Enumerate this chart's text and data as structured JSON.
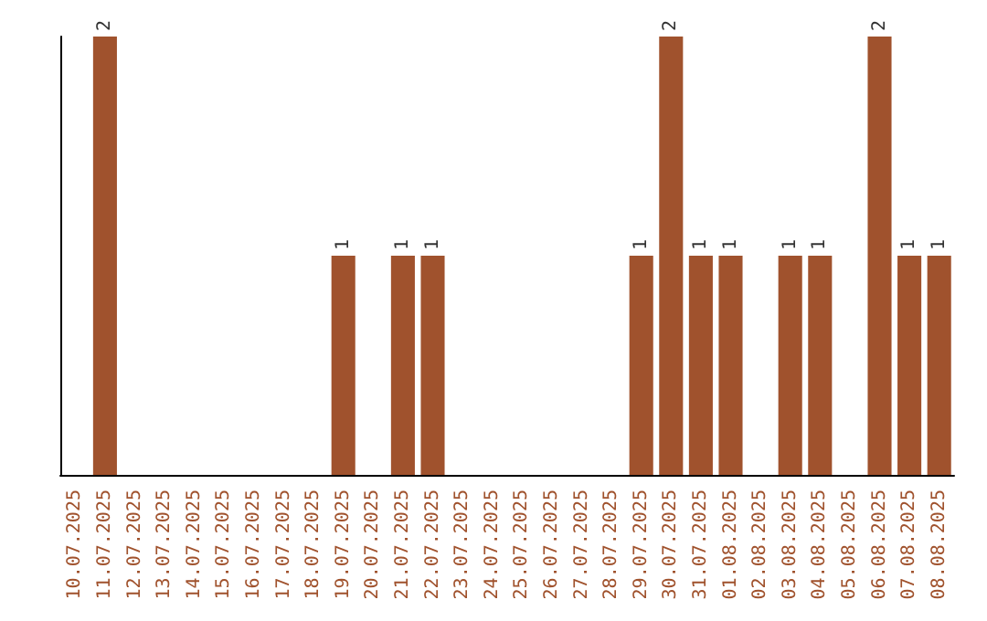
{
  "chart_data": {
    "type": "bar",
    "categories": [
      "10.07.2025",
      "11.07.2025",
      "12.07.2025",
      "13.07.2025",
      "14.07.2025",
      "15.07.2025",
      "16.07.2025",
      "17.07.2025",
      "18.07.2025",
      "19.07.2025",
      "20.07.2025",
      "21.07.2025",
      "22.07.2025",
      "23.07.2025",
      "24.07.2025",
      "25.07.2025",
      "26.07.2025",
      "27.07.2025",
      "28.07.2025",
      "29.07.2025",
      "30.07.2025",
      "31.07.2025",
      "01.08.2025",
      "02.08.2025",
      "03.08.2025",
      "04.08.2025",
      "05.08.2025",
      "06.08.2025",
      "07.08.2025",
      "08.08.2025"
    ],
    "values": [
      0,
      2,
      0,
      0,
      0,
      0,
      0,
      0,
      0,
      1,
      0,
      1,
      1,
      0,
      0,
      0,
      0,
      0,
      0,
      1,
      2,
      1,
      1,
      0,
      1,
      1,
      0,
      2,
      1,
      1
    ],
    "value_labels": [
      null,
      "2",
      null,
      null,
      null,
      null,
      null,
      null,
      null,
      "1",
      null,
      "1",
      "1",
      null,
      null,
      null,
      null,
      null,
      null,
      "1",
      "2",
      "1",
      "1",
      null,
      "1",
      "1",
      null,
      "2",
      "1",
      "1"
    ],
    "color": "#a0522d",
    "tick_labels": "x"
  }
}
